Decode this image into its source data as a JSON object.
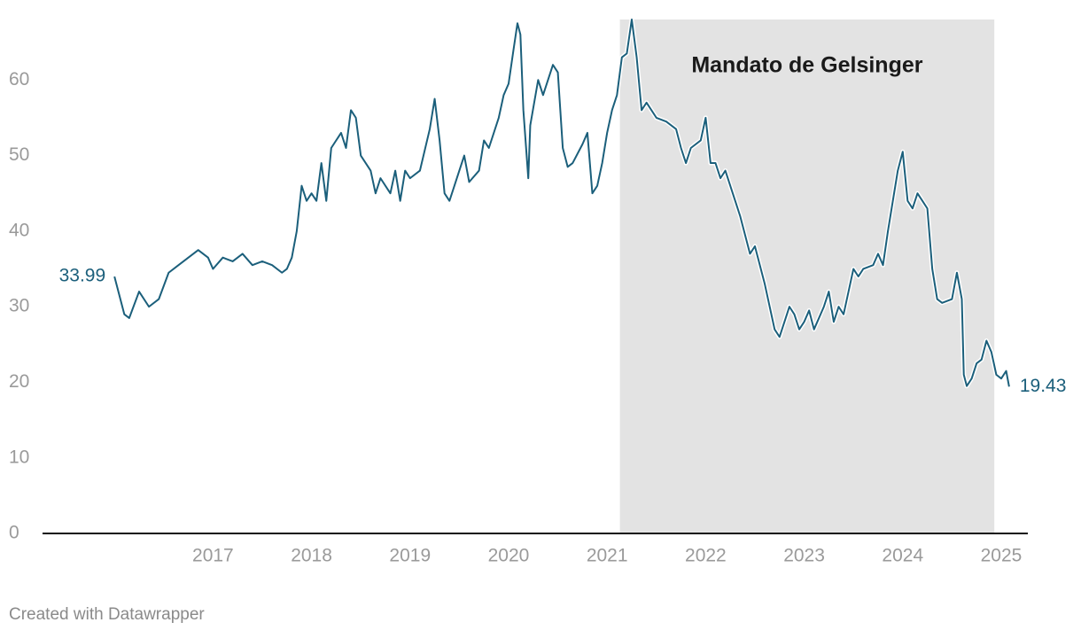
{
  "chart_data": {
    "type": "line",
    "x": [
      2016.0,
      2016.1,
      2016.15,
      2016.25,
      2016.35,
      2016.45,
      2016.55,
      2016.65,
      2016.75,
      2016.85,
      2016.95,
      2017.0,
      2017.1,
      2017.2,
      2017.3,
      2017.4,
      2017.5,
      2017.6,
      2017.7,
      2017.75,
      2017.8,
      2017.85,
      2017.9,
      2017.95,
      2018.0,
      2018.05,
      2018.1,
      2018.15,
      2018.2,
      2018.3,
      2018.35,
      2018.4,
      2018.45,
      2018.5,
      2018.6,
      2018.65,
      2018.7,
      2018.8,
      2018.85,
      2018.9,
      2018.95,
      2019.0,
      2019.1,
      2019.2,
      2019.25,
      2019.3,
      2019.35,
      2019.4,
      2019.45,
      2019.5,
      2019.55,
      2019.6,
      2019.7,
      2019.75,
      2019.8,
      2019.9,
      2019.95,
      2020.0,
      2020.05,
      2020.09,
      2020.12,
      2020.15,
      2020.2,
      2020.22,
      2020.3,
      2020.35,
      2020.45,
      2020.5,
      2020.55,
      2020.6,
      2020.65,
      2020.75,
      2020.8,
      2020.85,
      2020.9,
      2020.95,
      2021.0,
      2021.05,
      2021.1,
      2021.15,
      2021.2,
      2021.25,
      2021.3,
      2021.35,
      2021.4,
      2021.5,
      2021.6,
      2021.7,
      2021.75,
      2021.8,
      2021.85,
      2021.95,
      2022.0,
      2022.05,
      2022.1,
      2022.15,
      2022.2,
      2022.3,
      2022.35,
      2022.45,
      2022.5,
      2022.6,
      2022.65,
      2022.7,
      2022.75,
      2022.8,
      2022.85,
      2022.9,
      2022.95,
      2023.0,
      2023.05,
      2023.1,
      2023.2,
      2023.25,
      2023.3,
      2023.35,
      2023.4,
      2023.45,
      2023.5,
      2023.55,
      2023.6,
      2023.7,
      2023.75,
      2023.8,
      2023.85,
      2023.9,
      2023.95,
      2024.0,
      2024.05,
      2024.1,
      2024.15,
      2024.2,
      2024.25,
      2024.3,
      2024.35,
      2024.4,
      2024.5,
      2024.55,
      2024.6,
      2024.62,
      2024.65,
      2024.7,
      2024.75,
      2024.8,
      2024.85,
      2024.9,
      2024.95,
      2025.0,
      2025.05,
      2025.08
    ],
    "series": [
      {
        "color": "#1b5f7b",
        "values": [
          33.99,
          29,
          28.5,
          32,
          30,
          31,
          34.5,
          35.5,
          36.5,
          37.5,
          36.5,
          35,
          36.5,
          36,
          37,
          35.5,
          36,
          35.5,
          34.5,
          35,
          36.5,
          40,
          46,
          44,
          45,
          44,
          49,
          44,
          51,
          53,
          51,
          56,
          55,
          50,
          48,
          45,
          47,
          45,
          48,
          44,
          48,
          47,
          48,
          53.5,
          57.5,
          52,
          45,
          44,
          46,
          48,
          50,
          46.5,
          48,
          52,
          51,
          55,
          58,
          59.5,
          64,
          67.5,
          66,
          56,
          47,
          54,
          60,
          58,
          62,
          61,
          51,
          48.5,
          49,
          51.5,
          53,
          45,
          46,
          49,
          53,
          56,
          58,
          63,
          63.5,
          68,
          63,
          56,
          57,
          55,
          54.5,
          53.5,
          51,
          49,
          51,
          52,
          55,
          49,
          49,
          47,
          48,
          44,
          42,
          37,
          38,
          33,
          30,
          27,
          26,
          28,
          30,
          29,
          27,
          28,
          29.5,
          27,
          30,
          32,
          28,
          30,
          29,
          32,
          35,
          34,
          35,
          35.5,
          37,
          35.5,
          40,
          44,
          48,
          50.5,
          44,
          43,
          45,
          44,
          43,
          35,
          31,
          30.5,
          31,
          34.5,
          31,
          21,
          19.5,
          20.5,
          22.5,
          23,
          25.5,
          24,
          21,
          20.5,
          21.5,
          19.43
        ]
      }
    ],
    "xlim": [
      2015.27,
      2025.27
    ],
    "xticks": [
      2017,
      2018,
      2019,
      2020,
      2021,
      2022,
      2023,
      2024,
      2025
    ],
    "ylim": [
      0,
      68
    ],
    "yticks": [
      0,
      10,
      20,
      30,
      40,
      50,
      60
    ],
    "grid": false,
    "highlight": {
      "label": "Mandato de Gelsinger",
      "x": [
        2021.13,
        2024.93
      ],
      "color": "#e3e3e3"
    },
    "credit": "Created with Datawrapper"
  }
}
